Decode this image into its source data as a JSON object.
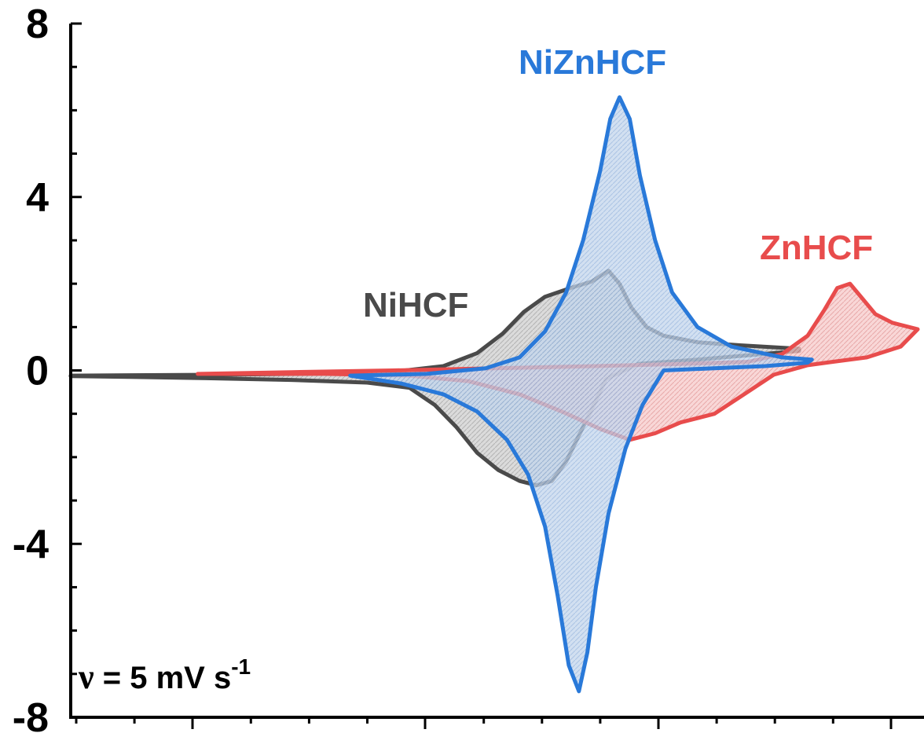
{
  "chart_data": {
    "type": "line",
    "title": "",
    "xlabel": "",
    "ylabel": "",
    "xlim": [
      0,
      1
    ],
    "ylim": [
      -8,
      8
    ],
    "yticks": [
      {
        "value": 8,
        "label": "8"
      },
      {
        "value": 4,
        "label": "4"
      },
      {
        "value": 0,
        "label": "0"
      },
      {
        "value": -4,
        "label": "-4"
      },
      {
        "value": -8,
        "label": "-8"
      }
    ],
    "series": [
      {
        "name": "NiHCF",
        "color": "#4a4a4a",
        "fill": "#c7c7c7",
        "points": [
          [
            0.0,
            -0.12
          ],
          [
            0.07,
            -0.11
          ],
          [
            0.18,
            -0.1
          ],
          [
            0.3,
            -0.07
          ],
          [
            0.39,
            -0.01
          ],
          [
            0.44,
            0.1
          ],
          [
            0.48,
            0.4
          ],
          [
            0.51,
            0.85
          ],
          [
            0.535,
            1.35
          ],
          [
            0.56,
            1.7
          ],
          [
            0.59,
            1.9
          ],
          [
            0.615,
            2.05
          ],
          [
            0.635,
            2.3
          ],
          [
            0.648,
            2.0
          ],
          [
            0.662,
            1.45
          ],
          [
            0.68,
            1.0
          ],
          [
            0.7,
            0.8
          ],
          [
            0.74,
            0.65
          ],
          [
            0.79,
            0.58
          ],
          [
            0.86,
            0.5
          ],
          [
            0.86,
            0.45
          ],
          [
            0.8,
            0.35
          ],
          [
            0.74,
            0.25
          ],
          [
            0.67,
            0.15
          ],
          [
            0.632,
            -0.2
          ],
          [
            0.62,
            -0.7
          ],
          [
            0.6,
            -1.5
          ],
          [
            0.585,
            -2.1
          ],
          [
            0.568,
            -2.55
          ],
          [
            0.55,
            -2.65
          ],
          [
            0.53,
            -2.55
          ],
          [
            0.505,
            -2.3
          ],
          [
            0.48,
            -1.9
          ],
          [
            0.455,
            -1.3
          ],
          [
            0.43,
            -0.8
          ],
          [
            0.4,
            -0.4
          ],
          [
            0.35,
            -0.28
          ],
          [
            0.26,
            -0.22
          ],
          [
            0.16,
            -0.18
          ],
          [
            0.07,
            -0.15
          ],
          [
            0.0,
            -0.13
          ]
        ]
      },
      {
        "name": "ZnHCF",
        "color": "#e84c4c",
        "fill": "#f6c3c3",
        "points": [
          [
            0.15,
            -0.08
          ],
          [
            0.26,
            -0.04
          ],
          [
            0.38,
            0.0
          ],
          [
            0.5,
            0.05
          ],
          [
            0.62,
            0.1
          ],
          [
            0.72,
            0.15
          ],
          [
            0.8,
            0.2
          ],
          [
            0.84,
            0.38
          ],
          [
            0.87,
            0.8
          ],
          [
            0.89,
            1.4
          ],
          [
            0.905,
            1.9
          ],
          [
            0.92,
            2.0
          ],
          [
            0.935,
            1.65
          ],
          [
            0.95,
            1.3
          ],
          [
            0.97,
            1.1
          ],
          [
            1.0,
            0.95
          ],
          [
            0.98,
            0.55
          ],
          [
            0.94,
            0.3
          ],
          [
            0.9,
            0.2
          ],
          [
            0.87,
            0.12
          ],
          [
            0.83,
            -0.1
          ],
          [
            0.795,
            -0.55
          ],
          [
            0.76,
            -1.0
          ],
          [
            0.72,
            -1.2
          ],
          [
            0.69,
            -1.45
          ],
          [
            0.66,
            -1.6
          ],
          [
            0.625,
            -1.35
          ],
          [
            0.58,
            -0.95
          ],
          [
            0.53,
            -0.55
          ],
          [
            0.47,
            -0.25
          ],
          [
            0.4,
            -0.12
          ],
          [
            0.3,
            -0.08
          ],
          [
            0.15,
            -0.08
          ]
        ]
      },
      {
        "name": "NiZnHCF",
        "color": "#2979d9",
        "fill": "#bcd1ea",
        "points": [
          [
            0.33,
            -0.12
          ],
          [
            0.42,
            -0.08
          ],
          [
            0.49,
            0.05
          ],
          [
            0.53,
            0.3
          ],
          [
            0.56,
            0.9
          ],
          [
            0.585,
            1.8
          ],
          [
            0.605,
            3.0
          ],
          [
            0.625,
            4.6
          ],
          [
            0.637,
            5.8
          ],
          [
            0.648,
            6.3
          ],
          [
            0.66,
            5.8
          ],
          [
            0.672,
            4.5
          ],
          [
            0.69,
            3.0
          ],
          [
            0.71,
            1.8
          ],
          [
            0.74,
            1.0
          ],
          [
            0.78,
            0.55
          ],
          [
            0.84,
            0.3
          ],
          [
            0.875,
            0.25
          ],
          [
            0.87,
            0.18
          ],
          [
            0.82,
            0.1
          ],
          [
            0.76,
            0.05
          ],
          [
            0.7,
            0.0
          ],
          [
            0.675,
            -0.8
          ],
          [
            0.655,
            -1.8
          ],
          [
            0.635,
            -3.3
          ],
          [
            0.62,
            -5.0
          ],
          [
            0.61,
            -6.5
          ],
          [
            0.6,
            -7.4
          ],
          [
            0.588,
            -6.8
          ],
          [
            0.575,
            -5.2
          ],
          [
            0.56,
            -3.6
          ],
          [
            0.54,
            -2.4
          ],
          [
            0.515,
            -1.6
          ],
          [
            0.48,
            -0.95
          ],
          [
            0.44,
            -0.55
          ],
          [
            0.39,
            -0.3
          ],
          [
            0.33,
            -0.12
          ]
        ]
      }
    ],
    "annotations": [
      {
        "text": "NiZnHCF",
        "color": "#2979d9"
      },
      {
        "text": "ZnHCF",
        "color": "#e84c4c"
      },
      {
        "text": "NiHCF",
        "color": "#4a4a4a"
      }
    ],
    "scan_rate": {
      "symbol": "ν",
      "text": " = 5 mV s",
      "exponent": "-1"
    }
  }
}
